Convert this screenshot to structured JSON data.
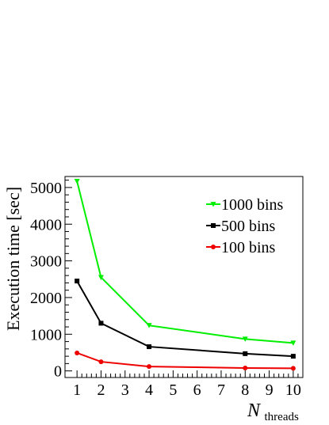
{
  "chart_data": {
    "type": "line",
    "ylabel": "Execution time [sec]",
    "xlabel_main": "N",
    "xlabel_sub": "threads",
    "xlim": [
      0.5,
      10.4
    ],
    "ylim": [
      -180,
      5300
    ],
    "xticks": [
      1,
      2,
      3,
      4,
      5,
      6,
      7,
      8,
      9,
      10
    ],
    "yticks": [
      0,
      1000,
      2000,
      3000,
      4000,
      5000
    ],
    "grid": false,
    "legend_position": "top-right",
    "series": [
      {
        "name": "1000 bins",
        "color": "#00ee00",
        "marker": "triangle-down",
        "x": [
          1,
          2,
          4,
          8,
          10
        ],
        "y": [
          5170,
          2550,
          1240,
          870,
          760
        ]
      },
      {
        "name": "500 bins",
        "color": "#000000",
        "marker": "square",
        "x": [
          1,
          2,
          4,
          8,
          10
        ],
        "y": [
          2450,
          1300,
          660,
          470,
          400
        ]
      },
      {
        "name": "100 bins",
        "color": "#ee0000",
        "marker": "circle",
        "x": [
          1,
          2,
          4,
          8,
          10
        ],
        "y": [
          490,
          250,
          120,
          80,
          70
        ]
      }
    ]
  }
}
